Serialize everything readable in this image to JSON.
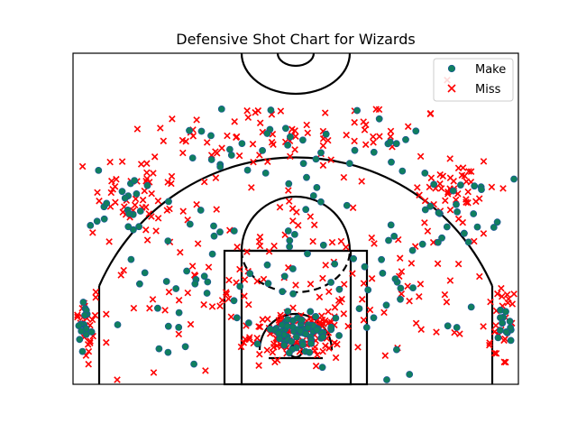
{
  "chart_data": {
    "type": "scatter",
    "title": "Defensive Shot Chart for Wizards",
    "xlabel": "",
    "ylabel": "",
    "xlim": [
      -250,
      250
    ],
    "ylim": [
      -50,
      320
    ],
    "grid": false,
    "axis_ticks": false,
    "legend_position": "top-right",
    "series": [
      {
        "name": "Make",
        "marker": "circle",
        "color": "#0f7f5f",
        "edgecolor": "#1f4fa0",
        "clusters": [
          {
            "cx": -238,
            "cy": 12,
            "sx": 5,
            "sy": 15,
            "n": 14
          },
          {
            "cx": 236,
            "cy": 12,
            "sx": 6,
            "sy": 15,
            "n": 14
          },
          {
            "cx": -185,
            "cy": 150,
            "sx": 22,
            "sy": 22,
            "n": 22
          },
          {
            "cx": 185,
            "cy": 150,
            "sx": 22,
            "sy": 22,
            "n": 22
          },
          {
            "cx": -60,
            "cy": 220,
            "sx": 45,
            "sy": 18,
            "n": 16
          },
          {
            "cx": 60,
            "cy": 220,
            "sx": 45,
            "sy": 18,
            "n": 16
          },
          {
            "cx": -120,
            "cy": 60,
            "sx": 35,
            "sy": 45,
            "n": 26
          },
          {
            "cx": 120,
            "cy": 60,
            "sx": 35,
            "sy": 45,
            "n": 26
          },
          {
            "cx": 0,
            "cy": 110,
            "sx": 45,
            "sy": 55,
            "n": 36
          },
          {
            "cx": 0,
            "cy": 5,
            "sx": 22,
            "sy": 12,
            "n": 60
          }
        ]
      },
      {
        "name": "Miss",
        "marker": "x",
        "color": "#ff0000",
        "clusters": [
          {
            "cx": -235,
            "cy": 15,
            "sx": 8,
            "sy": 25,
            "n": 24
          },
          {
            "cx": 232,
            "cy": 15,
            "sx": 10,
            "sy": 25,
            "n": 24
          },
          {
            "cx": -175,
            "cy": 165,
            "sx": 25,
            "sy": 25,
            "n": 46
          },
          {
            "cx": 175,
            "cy": 165,
            "sx": 25,
            "sy": 25,
            "n": 46
          },
          {
            "cx": -70,
            "cy": 230,
            "sx": 50,
            "sy": 18,
            "n": 34
          },
          {
            "cx": 70,
            "cy": 230,
            "sx": 50,
            "sy": 18,
            "n": 34
          },
          {
            "cx": -130,
            "cy": 60,
            "sx": 45,
            "sy": 50,
            "n": 42
          },
          {
            "cx": 130,
            "cy": 60,
            "sx": 45,
            "sy": 50,
            "n": 42
          },
          {
            "cx": 0,
            "cy": 110,
            "sx": 55,
            "sy": 60,
            "n": 56
          },
          {
            "cx": 0,
            "cy": 5,
            "sx": 25,
            "sy": 12,
            "n": 130
          }
        ],
        "outliers": [
          [
            170,
            290
          ]
        ]
      }
    ]
  }
}
